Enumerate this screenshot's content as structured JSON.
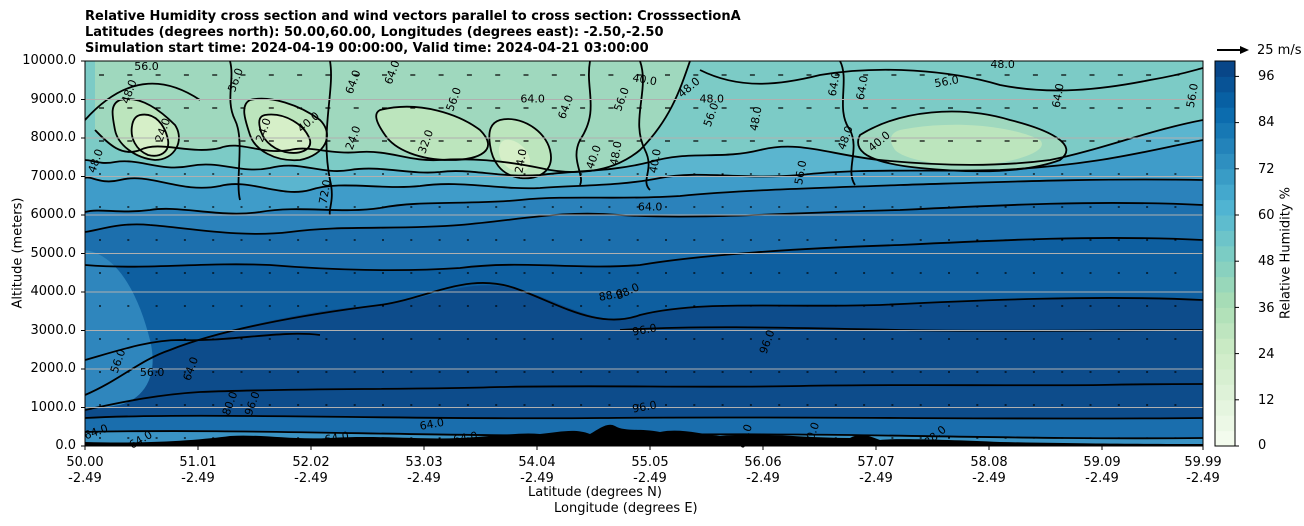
{
  "chart_data": {
    "type": "contourf",
    "title_lines": [
      "Relative Humidity cross section and wind vectors parallel to cross section: CrosssectionA",
      "Latitudes (degrees north): 50.00,60.00, Longitudes (degrees east): -2.50,-2.50",
      "Simulation start time: 2024-04-19 00:00:00, Valid time: 2024-04-21 03:00:00"
    ],
    "ylabel": "Altitude (meters)",
    "xlabel_lines": [
      "Latitude (degrees N)",
      "Longitude (degrees E)"
    ],
    "ylim": [
      0,
      10000
    ],
    "y_ticks": [
      0,
      1000,
      2000,
      3000,
      4000,
      5000,
      6000,
      7000,
      8000,
      9000,
      10000
    ],
    "y_tick_labels": [
      "0.0",
      "1000.0",
      "2000.0",
      "3000.0",
      "4000.0",
      "5000.0",
      "6000.0",
      "7000.0",
      "8000.0",
      "9000.0",
      "10000.0"
    ],
    "xlim": [
      50.0,
      59.99
    ],
    "x_ticks": [
      {
        "lat": "50.00",
        "lon": "-2.49"
      },
      {
        "lat": "51.01",
        "lon": "-2.49"
      },
      {
        "lat": "52.02",
        "lon": "-2.49"
      },
      {
        "lat": "53.03",
        "lon": "-2.49"
      },
      {
        "lat": "54.04",
        "lon": "-2.49"
      },
      {
        "lat": "55.05",
        "lon": "-2.49"
      },
      {
        "lat": "56.06",
        "lon": "-2.49"
      },
      {
        "lat": "57.07",
        "lon": "-2.49"
      },
      {
        "lat": "58.08",
        "lon": "-2.49"
      },
      {
        "lat": "59.09",
        "lon": "-2.49"
      },
      {
        "lat": "59.99",
        "lon": "-2.49"
      }
    ],
    "colorbar": {
      "label": "Relative Humidity %",
      "min": 0,
      "max": 100,
      "step": 4,
      "tick_labels": [
        "0",
        "12",
        "24",
        "36",
        "48",
        "60",
        "72",
        "84",
        "96"
      ]
    },
    "quiver_key": "25 m/s",
    "contour_labels": [
      {
        "text": "56.0",
        "lat": 50.55,
        "alt": 9850,
        "rot": 0
      },
      {
        "text": "48.0",
        "lat": 50.4,
        "alt": 9200,
        "rot": -70
      },
      {
        "text": "24.0",
        "lat": 50.7,
        "alt": 8200,
        "rot": -70
      },
      {
        "text": "48.0",
        "lat": 50.1,
        "alt": 7400,
        "rot": -70
      },
      {
        "text": "56.0",
        "lat": 50.6,
        "alt": 1900,
        "rot": 0
      },
      {
        "text": "56.0",
        "lat": 50.3,
        "alt": 2200,
        "rot": -70
      },
      {
        "text": "64.0",
        "lat": 50.95,
        "alt": 2000,
        "rot": -70
      },
      {
        "text": "80.0",
        "lat": 51.3,
        "alt": 1100,
        "rot": -70
      },
      {
        "text": "64.0",
        "lat": 50.1,
        "alt": 350,
        "rot": -20
      },
      {
        "text": "24.0",
        "lat": 51.6,
        "alt": 8200,
        "rot": -70
      },
      {
        "text": "56.0",
        "lat": 51.35,
        "alt": 9500,
        "rot": -70
      },
      {
        "text": "72.0",
        "lat": 52.15,
        "alt": 6600,
        "rot": -80
      },
      {
        "text": "40.0",
        "lat": 52.0,
        "alt": 8400,
        "rot": -40
      },
      {
        "text": "64.0",
        "lat": 52.4,
        "alt": 9450,
        "rot": -70
      },
      {
        "text": "24.0",
        "lat": 52.4,
        "alt": 8000,
        "rot": -70
      },
      {
        "text": "64.0",
        "lat": 52.75,
        "alt": 9700,
        "rot": -70
      },
      {
        "text": "32.0",
        "lat": 53.05,
        "alt": 7900,
        "rot": -70
      },
      {
        "text": "56.0",
        "lat": 53.3,
        "alt": 9000,
        "rot": -70
      },
      {
        "text": "64.0",
        "lat": 54.0,
        "alt": 9000,
        "rot": 0
      },
      {
        "text": "24.0",
        "lat": 53.9,
        "alt": 7400,
        "rot": -80
      },
      {
        "text": "64.0",
        "lat": 54.3,
        "alt": 8800,
        "rot": -70
      },
      {
        "text": "40.0",
        "lat": 54.55,
        "alt": 7500,
        "rot": -70
      },
      {
        "text": "48.0",
        "lat": 54.75,
        "alt": 7600,
        "rot": -80
      },
      {
        "text": "40.0",
        "lat": 55.1,
        "alt": 7400,
        "rot": -80
      },
      {
        "text": "56.0",
        "lat": 54.8,
        "alt": 9000,
        "rot": -70
      },
      {
        "text": "40.0",
        "lat": 55.0,
        "alt": 9500,
        "rot": 10
      },
      {
        "text": "48.0",
        "lat": 55.4,
        "alt": 9300,
        "rot": -40
      },
      {
        "text": "48.0",
        "lat": 55.6,
        "alt": 9000,
        "rot": 0
      },
      {
        "text": "56.0",
        "lat": 55.6,
        "alt": 8600,
        "rot": -70
      },
      {
        "text": "64.0",
        "lat": 55.05,
        "alt": 6200,
        "rot": 0
      },
      {
        "text": "48.0",
        "lat": 56.0,
        "alt": 8500,
        "rot": -80
      },
      {
        "text": "56.0",
        "lat": 56.4,
        "alt": 7100,
        "rot": -80
      },
      {
        "text": "64.0",
        "lat": 56.7,
        "alt": 9400,
        "rot": -80
      },
      {
        "text": "64.0",
        "lat": 56.95,
        "alt": 9300,
        "rot": -80
      },
      {
        "text": "48.0",
        "lat": 56.8,
        "alt": 8000,
        "rot": -70
      },
      {
        "text": "40.0",
        "lat": 57.1,
        "alt": 7900,
        "rot": -40
      },
      {
        "text": "56.0",
        "lat": 57.7,
        "alt": 9450,
        "rot": -10
      },
      {
        "text": "48.0",
        "lat": 58.2,
        "alt": 9900,
        "rot": 0
      },
      {
        "text": "64.0",
        "lat": 58.7,
        "alt": 9100,
        "rot": -80
      },
      {
        "text": "56.0",
        "lat": 59.9,
        "alt": 9100,
        "rot": -80
      },
      {
        "text": "88.0",
        "lat": 54.85,
        "alt": 4000,
        "rot": -25
      },
      {
        "text": "88.0",
        "lat": 54.7,
        "alt": 3900,
        "rot": -10
      },
      {
        "text": "96.0",
        "lat": 55.0,
        "alt": 3000,
        "rot": -10
      },
      {
        "text": "96.0",
        "lat": 56.1,
        "alt": 2700,
        "rot": -70
      },
      {
        "text": "96.0",
        "lat": 55.0,
        "alt": 1000,
        "rot": -10
      },
      {
        "text": "96.0",
        "lat": 51.5,
        "alt": 1100,
        "rot": -70
      },
      {
        "text": "64.0",
        "lat": 53.1,
        "alt": 550,
        "rot": -10
      },
      {
        "text": "64.0",
        "lat": 52.25,
        "alt": 200,
        "rot": -10
      },
      {
        "text": "64.0",
        "lat": 53.4,
        "alt": 200,
        "rot": -10
      },
      {
        "text": "64.0",
        "lat": 50.5,
        "alt": 150,
        "rot": -30
      },
      {
        "text": "80.0",
        "lat": 55.9,
        "alt": 250,
        "rot": -70
      },
      {
        "text": "88.0",
        "lat": 57.6,
        "alt": 250,
        "rot": -40
      },
      {
        "text": "80.0",
        "lat": 56.5,
        "alt": 300,
        "rot": -70
      }
    ]
  }
}
